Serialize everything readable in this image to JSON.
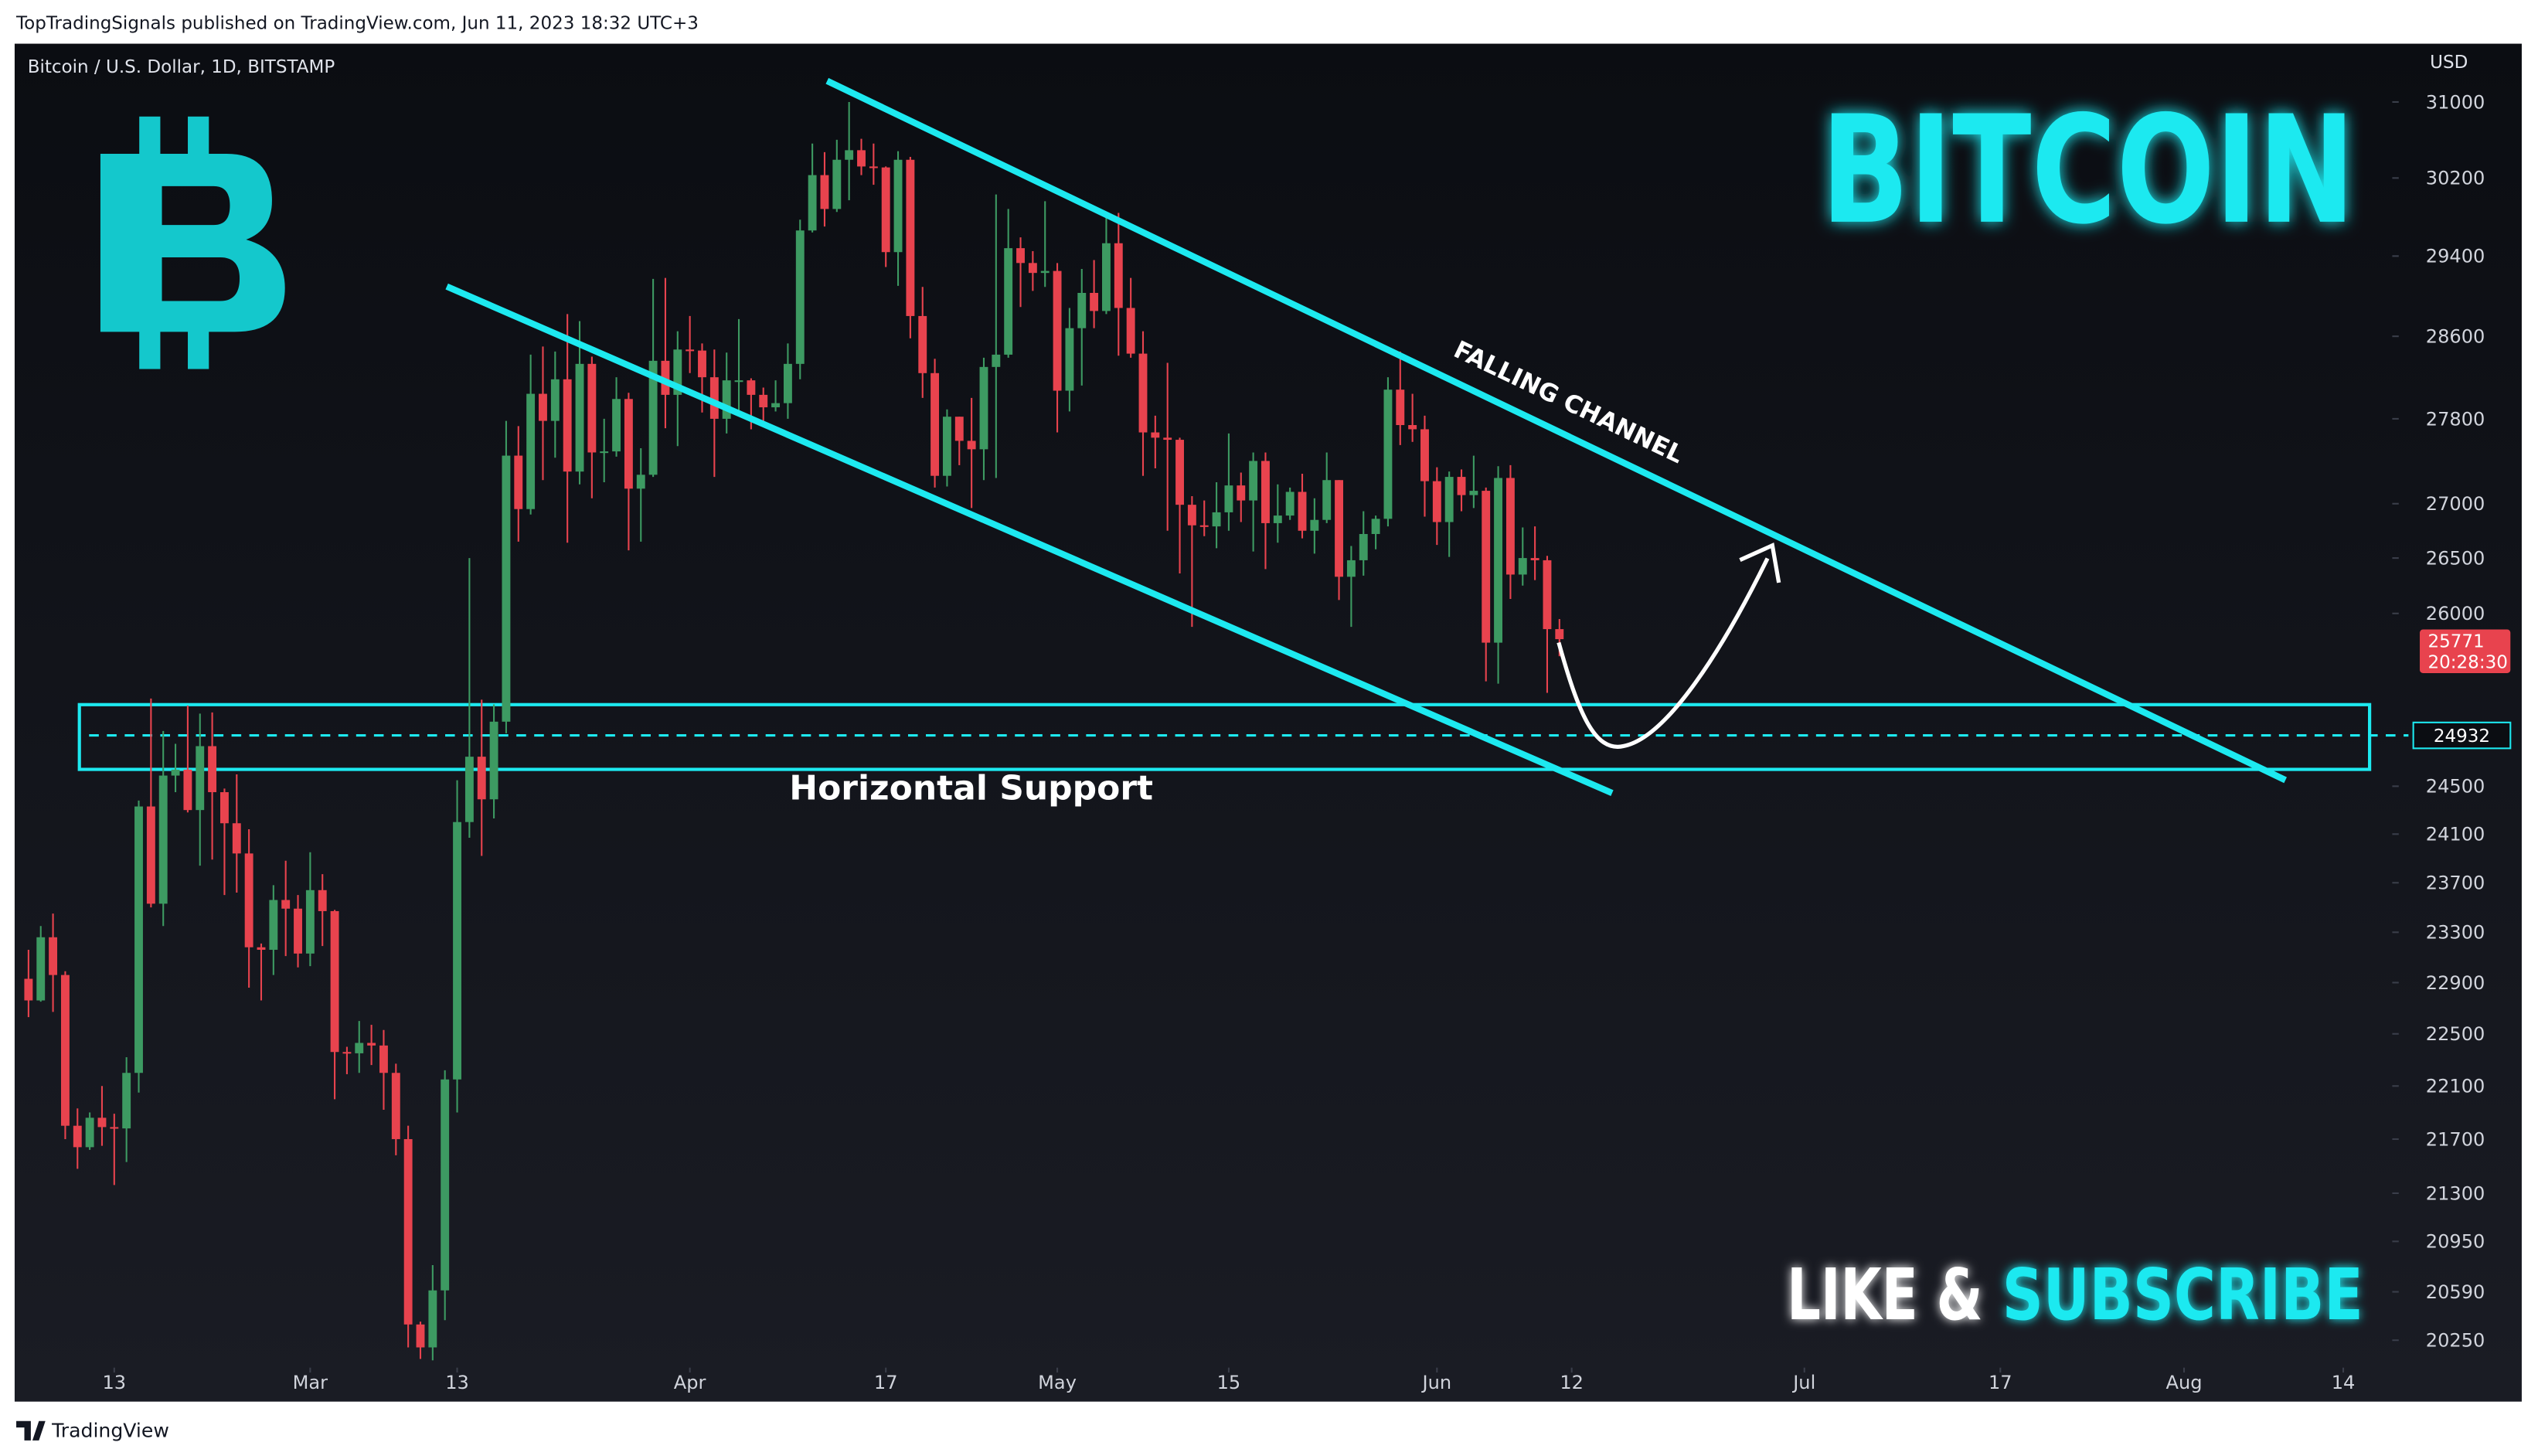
{
  "header": {
    "published": "TopTradingSignals published on TradingView.com, Jun 11, 2023 18:32 UTC+3"
  },
  "footer": {
    "brand": "TradingView"
  },
  "chart_data": {
    "type": "candlestick",
    "symbol": "Bitcoin / U.S. Dollar, 1D, BITSTAMP",
    "currency": "USD",
    "title": "BITCOIN",
    "cta_left": "LIKE &",
    "cta_right": "SUBSCRIBE",
    "channel_label": "FALLING CHANNEL",
    "support_label": "Horizontal Support",
    "support_level": 24932,
    "last_price": 25771,
    "countdown": "20:28:30",
    "up_color": "#3d9a62",
    "down_color": "#e8434e",
    "accent_color": "#1de9f0",
    "log_scale": true,
    "ylim": [
      20060,
      31610
    ],
    "yticks": [
      31000,
      30200,
      29400,
      28600,
      27800,
      27000,
      26500,
      26000,
      24500,
      24100,
      23700,
      23300,
      22900,
      22500,
      22100,
      21700,
      21300,
      20950,
      20590,
      20250
    ],
    "xlim": [
      "02-05",
      "08-18"
    ],
    "xticks": [
      {
        "value": "02-13",
        "label": "13"
      },
      {
        "value": "03-01",
        "label": "Mar"
      },
      {
        "value": "03-13",
        "label": "13"
      },
      {
        "value": "04-01",
        "label": "Apr"
      },
      {
        "value": "04-17",
        "label": "17"
      },
      {
        "value": "05-01",
        "label": "May"
      },
      {
        "value": "05-15",
        "label": "15"
      },
      {
        "value": "06-01",
        "label": "Jun"
      },
      {
        "value": "06-12",
        "label": "12"
      },
      {
        "value": "07-01",
        "label": "Jul"
      },
      {
        "value": "07-17",
        "label": "17"
      },
      {
        "value": "08-01",
        "label": "Aug"
      },
      {
        "value": "08-14",
        "label": "14"
      }
    ],
    "x": [
      "02-06",
      "02-07",
      "02-08",
      "02-09",
      "02-10",
      "02-11",
      "02-12",
      "02-13",
      "02-14",
      "02-15",
      "02-16",
      "02-17",
      "02-18",
      "02-19",
      "02-20",
      "02-21",
      "02-22",
      "02-23",
      "02-24",
      "02-25",
      "02-26",
      "02-27",
      "02-28",
      "03-01",
      "03-02",
      "03-03",
      "03-04",
      "03-05",
      "03-06",
      "03-07",
      "03-08",
      "03-09",
      "03-10",
      "03-11",
      "03-12",
      "03-13",
      "03-14",
      "03-15",
      "03-16",
      "03-17",
      "03-18",
      "03-19",
      "03-20",
      "03-21",
      "03-22",
      "03-23",
      "03-24",
      "03-25",
      "03-26",
      "03-27",
      "03-28",
      "03-29",
      "03-30",
      "03-31",
      "04-01",
      "04-02",
      "04-03",
      "04-04",
      "04-05",
      "04-06",
      "04-07",
      "04-08",
      "04-09",
      "04-10",
      "04-11",
      "04-12",
      "04-13",
      "04-14",
      "04-15",
      "04-16",
      "04-17",
      "04-18",
      "04-19",
      "04-20",
      "04-21",
      "04-22",
      "04-23",
      "04-24",
      "04-25",
      "04-26",
      "04-27",
      "04-28",
      "04-29",
      "04-30",
      "05-01",
      "05-02",
      "05-03",
      "05-04",
      "05-05",
      "05-06",
      "05-07",
      "05-08",
      "05-09",
      "05-10",
      "05-11",
      "05-12",
      "05-13",
      "05-14",
      "05-15",
      "05-16",
      "05-17",
      "05-18",
      "05-19",
      "05-20",
      "05-21",
      "05-22",
      "05-23",
      "05-24",
      "05-25",
      "05-26",
      "05-27",
      "05-28",
      "05-29",
      "05-30",
      "05-31",
      "06-01",
      "06-02",
      "06-03",
      "06-04",
      "06-05",
      "06-06",
      "06-07",
      "06-08",
      "06-09",
      "06-10",
      "06-11"
    ],
    "open": [
      22930,
      22760,
      23260,
      22960,
      21800,
      21640,
      21860,
      21790,
      21780,
      22200,
      24330,
      23530,
      24590,
      24640,
      24300,
      24840,
      24450,
      24190,
      23940,
      23180,
      23160,
      23560,
      23490,
      23130,
      23640,
      23470,
      22360,
      22350,
      22430,
      22410,
      22200,
      21700,
      20360,
      20200,
      20600,
      22150,
      24200,
      24750,
      24390,
      25050,
      27450,
      26950,
      28040,
      27780,
      28180,
      27300,
      28330,
      27480,
      27490,
      27990,
      27140,
      27270,
      28360,
      28030,
      28470,
      28460,
      28200,
      27800,
      28170,
      28170,
      28030,
      27910,
      27950,
      28330,
      29660,
      30230,
      29880,
      30390,
      30490,
      30320,
      30310,
      29440,
      30390,
      28800,
      28240,
      27260,
      27820,
      27590,
      27510,
      28300,
      28420,
      29480,
      29330,
      29230,
      29250,
      28070,
      28680,
      29030,
      28850,
      29530,
      28880,
      28430,
      27670,
      27620,
      27600,
      26990,
      26800,
      26790,
      26920,
      27170,
      27030,
      27400,
      26820,
      26890,
      27110,
      26750,
      26850,
      27220,
      26330,
      26480,
      26720,
      26860,
      28080,
      27740,
      27700,
      27210,
      26830,
      27250,
      27080,
      27120,
      25740,
      27240,
      26350,
      26500,
      26480,
      25860
    ],
    "high": [
      23160,
      23350,
      23450,
      22990,
      21930,
      21900,
      22100,
      21890,
      22320,
      24380,
      25250,
      24970,
      24860,
      25190,
      25120,
      25130,
      24480,
      24600,
      24140,
      23210,
      23680,
      23880,
      23600,
      23950,
      23770,
      23480,
      22400,
      22600,
      22570,
      22530,
      22270,
      21800,
      20380,
      20780,
      22220,
      24550,
      26500,
      25240,
      25200,
      27780,
      27730,
      28420,
      28500,
      28450,
      28820,
      28750,
      28400,
      27800,
      28200,
      28050,
      27520,
      29170,
      29180,
      28650,
      28800,
      28530,
      28470,
      28440,
      28770,
      28190,
      28100,
      28170,
      28530,
      29770,
      30560,
      30470,
      30600,
      31000,
      30610,
      30560,
      30320,
      30480,
      30420,
      29090,
      28380,
      27890,
      27820,
      28000,
      28390,
      30030,
      29880,
      29590,
      29450,
      29960,
      29330,
      28880,
      29270,
      29360,
      29850,
      29840,
      29180,
      28650,
      27830,
      28340,
      27620,
      27070,
      27030,
      27200,
      27660,
      27290,
      27480,
      27480,
      27180,
      27150,
      27280,
      27050,
      27480,
      27220,
      26610,
      26930,
      26890,
      28200,
      28450,
      28040,
      27830,
      27340,
      27300,
      27320,
      27450,
      27150,
      27350,
      27360,
      26780,
      26790,
      26520,
      25950
    ],
    "low": [
      22630,
      22750,
      22670,
      21700,
      21480,
      21620,
      21650,
      21360,
      21530,
      22050,
      23500,
      23350,
      24450,
      24280,
      23840,
      23890,
      23600,
      23620,
      22860,
      22760,
      22960,
      23110,
      23020,
      23030,
      23190,
      22000,
      22190,
      22200,
      22260,
      21920,
      21580,
      20200,
      20120,
      20110,
      20390,
      21900,
      24070,
      23920,
      24230,
      24950,
      26650,
      26900,
      27220,
      27430,
      26640,
      27180,
      27050,
      27200,
      27440,
      26570,
      26650,
      27250,
      27710,
      27540,
      28240,
      27860,
      27250,
      27660,
      27860,
      27700,
      27780,
      27870,
      27800,
      28180,
      29640,
      29700,
      29850,
      29970,
      30230,
      30130,
      29290,
      29100,
      28580,
      28000,
      27150,
      27160,
      27360,
      26960,
      27220,
      27240,
      28390,
      28890,
      29050,
      29090,
      27670,
      27870,
      28120,
      28680,
      28820,
      28410,
      28390,
      27260,
      27330,
      26750,
      26360,
      25880,
      26700,
      26590,
      26750,
      26830,
      26560,
      26400,
      26640,
      26850,
      26680,
      26540,
      26820,
      26120,
      25880,
      26340,
      26580,
      26790,
      27550,
      27580,
      26880,
      26620,
      26510,
      26930,
      26960,
      25400,
      25380,
      26130,
      26250,
      26300,
      25300,
      25620
    ],
    "close": [
      22760,
      23260,
      22960,
      21800,
      21640,
      21860,
      21790,
      21780,
      22200,
      24330,
      23530,
      24590,
      24640,
      24300,
      24840,
      24450,
      24190,
      23940,
      23180,
      23160,
      23560,
      23490,
      23130,
      23640,
      23470,
      22360,
      22350,
      22430,
      22410,
      22200,
      21700,
      20360,
      20200,
      20600,
      22150,
      24200,
      24750,
      24390,
      25050,
      27450,
      26950,
      28040,
      27780,
      28180,
      27300,
      28330,
      27480,
      27490,
      27990,
      27140,
      27270,
      28360,
      28030,
      28470,
      28460,
      28200,
      27800,
      28170,
      28170,
      28030,
      27910,
      27950,
      28330,
      29660,
      30230,
      29880,
      30390,
      30490,
      30320,
      30310,
      29440,
      30390,
      28800,
      28240,
      27260,
      27820,
      27590,
      27510,
      28300,
      28420,
      29480,
      29330,
      29230,
      29250,
      28070,
      28680,
      29030,
      28850,
      29530,
      28880,
      28430,
      27670,
      27620,
      27600,
      26990,
      26800,
      26790,
      26920,
      27170,
      27030,
      27400,
      26820,
      26890,
      27110,
      26750,
      26850,
      27220,
      26330,
      26480,
      26720,
      26860,
      28080,
      27740,
      27700,
      27210,
      26830,
      27250,
      27080,
      27120,
      25740,
      27240,
      26350,
      26500,
      26480,
      25860,
      25771
    ]
  }
}
